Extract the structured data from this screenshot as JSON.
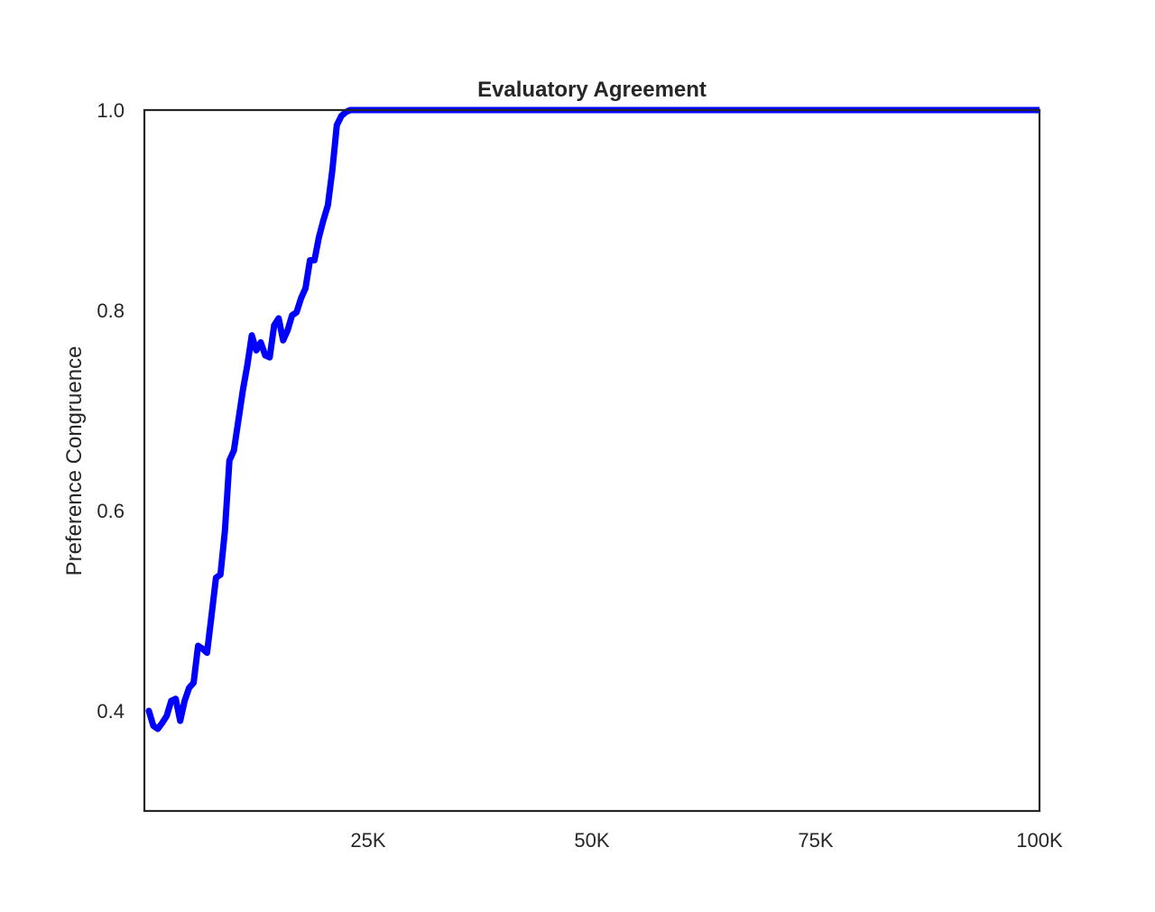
{
  "chart_data": {
    "type": "line",
    "title": "Evaluatory Agreement",
    "xlabel": "",
    "ylabel": "Preference Congruence",
    "xlim": [
      0,
      100000
    ],
    "ylim": [
      0.3,
      1.0
    ],
    "x_ticks": [
      {
        "value": 25000,
        "label": "25K"
      },
      {
        "value": 50000,
        "label": "50K"
      },
      {
        "value": 75000,
        "label": "75K"
      },
      {
        "value": 100000,
        "label": "100K"
      }
    ],
    "y_ticks": [
      {
        "value": 0.4,
        "label": "0.4"
      },
      {
        "value": 0.6,
        "label": "0.6"
      },
      {
        "value": 0.8,
        "label": "0.8"
      },
      {
        "value": 1.0,
        "label": "1.0"
      }
    ],
    "grid": false,
    "legend": "none",
    "colors": {
      "line": "#0000ff",
      "axes": "#262626",
      "background": "#ffffff"
    },
    "series": [
      {
        "x": [
          500,
          1000,
          1500,
          2000,
          2500,
          3000,
          3500,
          4000,
          4500,
          5000,
          5500,
          6000,
          6500,
          7000,
          7500,
          8000,
          8500,
          9000,
          9500,
          10000,
          10500,
          11000,
          11500,
          12000,
          12500,
          13000,
          13500,
          14000,
          14500,
          15000,
          15500,
          16000,
          16500,
          17000,
          17500,
          18000,
          18500,
          19000,
          19500,
          20000,
          20500,
          21000,
          21500,
          22000,
          22500,
          23000,
          24000,
          25000,
          30000,
          40000,
          50000,
          60000,
          70000,
          80000,
          90000,
          100000
        ],
        "y": [
          0.4,
          0.385,
          0.382,
          0.388,
          0.395,
          0.41,
          0.412,
          0.39,
          0.41,
          0.423,
          0.428,
          0.465,
          0.462,
          0.458,
          0.495,
          0.533,
          0.536,
          0.58,
          0.65,
          0.66,
          0.69,
          0.72,
          0.745,
          0.775,
          0.76,
          0.768,
          0.755,
          0.753,
          0.785,
          0.792,
          0.77,
          0.78,
          0.795,
          0.798,
          0.812,
          0.822,
          0.85,
          0.85,
          0.873,
          0.89,
          0.905,
          0.94,
          0.985,
          0.994,
          0.998,
          1.0,
          1.0,
          1.0,
          1.0,
          1.0,
          1.0,
          1.0,
          1.0,
          1.0,
          1.0,
          1.0
        ]
      }
    ]
  }
}
